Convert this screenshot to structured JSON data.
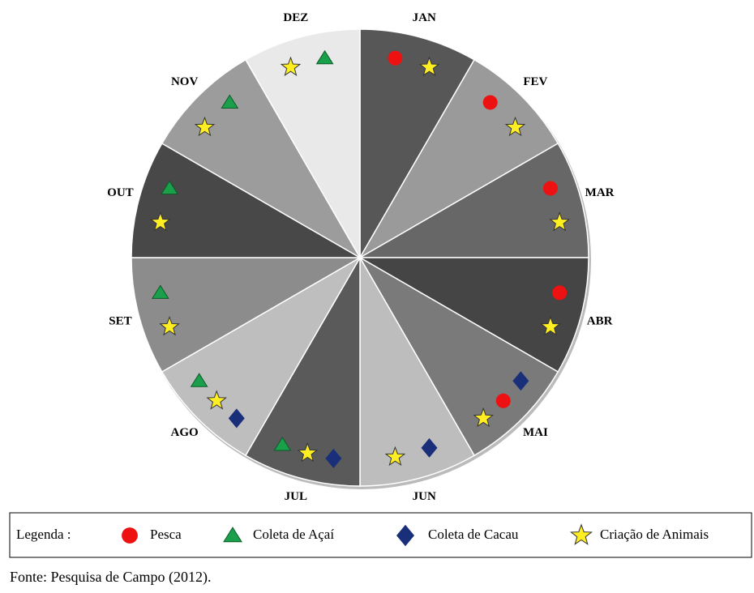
{
  "months": [
    {
      "label": "JAN",
      "activities": [
        "Pesca",
        "Criação de Animais"
      ]
    },
    {
      "label": "FEV",
      "activities": [
        "Pesca",
        "Criação de Animais"
      ]
    },
    {
      "label": "MAR",
      "activities": [
        "Pesca",
        "Criação de Animais"
      ]
    },
    {
      "label": "ABR",
      "activities": [
        "Pesca",
        "Criação de Animais"
      ]
    },
    {
      "label": "MAI",
      "activities": [
        "Coleta de Cacau",
        "Pesca",
        "Criação de Animais"
      ]
    },
    {
      "label": "JUN",
      "activities": [
        "Coleta de Cacau",
        "Criação de Animais"
      ]
    },
    {
      "label": "JUL",
      "activities": [
        "Coleta de Cacau",
        "Criação de Animais",
        "Coleta de Açaí"
      ]
    },
    {
      "label": "AGO",
      "activities": [
        "Coleta de Cacau",
        "Criação de Animais",
        "Coleta de Açaí"
      ]
    },
    {
      "label": "SET",
      "activities": [
        "Criação de Animais",
        "Coleta de Açaí"
      ]
    },
    {
      "label": "OUT",
      "activities": [
        "Criação de Animais",
        "Coleta de Açaí"
      ]
    },
    {
      "label": "NOV",
      "activities": [
        "Criação de Animais",
        "Coleta de Açaí"
      ]
    },
    {
      "label": "DEZ",
      "activities": [
        "Criação de Animais",
        "Coleta de Açaí"
      ]
    }
  ],
  "legend": {
    "title": "Legenda :",
    "items": [
      "Pesca",
      "Coleta de Açaí",
      "Coleta de Cacau",
      "Criação de Animais"
    ]
  },
  "source": "Fonte: Pesquisa de Campo (2012)."
}
